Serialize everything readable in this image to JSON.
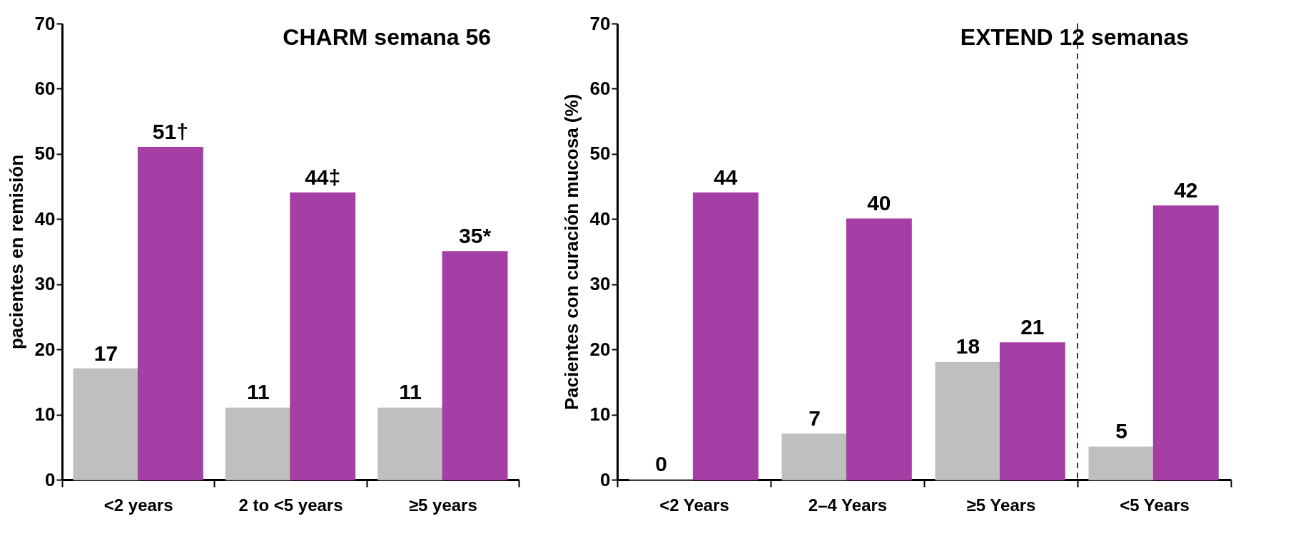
{
  "chart_data": [
    {
      "type": "bar",
      "title": "CHARM semana 56",
      "ylabel": "pacientes en remisión",
      "categories": [
        "<2 years",
        "2 to <5 years",
        "≥5 years"
      ],
      "series": [
        {
          "color": "#bfbfbf",
          "values": [
            17,
            11,
            11
          ],
          "value_labels": [
            "17",
            "11",
            "11"
          ]
        },
        {
          "color": "#a53fa5",
          "values": [
            51,
            44,
            35
          ],
          "value_labels": [
            "51†",
            "44‡",
            "35*"
          ]
        }
      ],
      "ylim": [
        0,
        70
      ],
      "yticks": [
        0,
        10,
        20,
        30,
        40,
        50,
        60,
        70
      ],
      "grid": false,
      "legend": false
    },
    {
      "type": "bar",
      "title": "EXTEND 12 semanas",
      "ylabel": "Pacientes con curación mucosa (%)",
      "categories": [
        "<2 Years",
        "2–4 Years",
        "≥5 Years",
        "<5 Years"
      ],
      "series": [
        {
          "color": "#bfbfbf",
          "values": [
            0,
            7,
            18,
            5
          ]
        },
        {
          "color": "#a53fa5",
          "values": [
            44,
            40,
            21,
            42
          ]
        }
      ],
      "data_labels": true,
      "ref_lines": [
        {
          "axis": "x",
          "value": "<5 Years",
          "color": "#1f3864",
          "line_style": "dashed"
        }
      ],
      "ylim": [
        0,
        70
      ],
      "yticks": [
        0,
        10,
        20,
        30,
        40,
        50,
        60,
        70
      ],
      "grid": false,
      "legend": false
    }
  ]
}
